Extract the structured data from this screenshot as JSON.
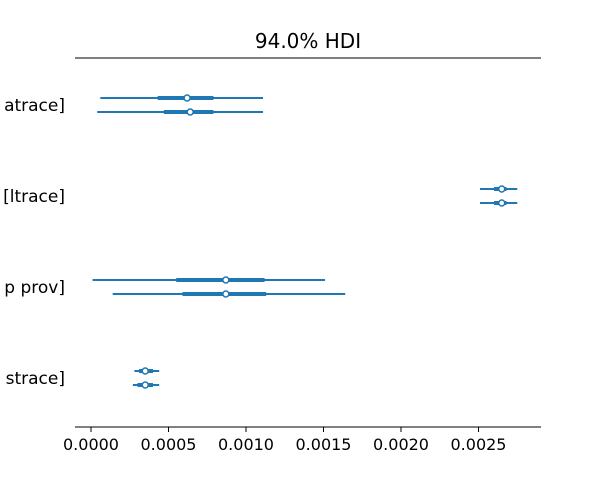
{
  "chart_data": {
    "type": "forest",
    "title": "94.0% HDI",
    "xlabel": "",
    "ylabel": "",
    "xlim": [
      -7e-05,
      0.00293
    ],
    "x_ticks": [
      0.0,
      0.0005,
      0.001,
      0.0015,
      0.002,
      0.0025
    ],
    "x_tick_labels": [
      "0.0000",
      "0.0005",
      "0.0010",
      "0.0015",
      "0.0020",
      "0.0025"
    ],
    "grid": false,
    "legend": "none",
    "line_color": "#1f77b4",
    "marker_face_color": "#ffffff",
    "categories": [
      {
        "label": "atrace]",
        "chains": [
          {
            "hdi": [
              6e-05,
              0.00111
            ],
            "iqr": [
              0.00043,
              0.00079
            ],
            "median": 0.00062
          },
          {
            "hdi": [
              4e-05,
              0.00111
            ],
            "iqr": [
              0.00047,
              0.00079
            ],
            "median": 0.00064
          }
        ]
      },
      {
        "label": "[ltrace]",
        "chains": [
          {
            "hdi": [
              0.00251,
              0.00275
            ],
            "iqr": [
              0.0026,
              0.00268
            ],
            "median": 0.00265
          },
          {
            "hdi": [
              0.00251,
              0.00275
            ],
            "iqr": [
              0.0026,
              0.00268
            ],
            "median": 0.00265
          }
        ]
      },
      {
        "label": "p prov]",
        "chains": [
          {
            "hdi": [
              1e-05,
              0.00151
            ],
            "iqr": [
              0.00055,
              0.00112
            ],
            "median": 0.00087
          },
          {
            "hdi": [
              0.00014,
              0.00164
            ],
            "iqr": [
              0.00059,
              0.00113
            ],
            "median": 0.00087
          }
        ]
      },
      {
        "label": "strace]",
        "chains": [
          {
            "hdi": [
              0.00028,
              0.00044
            ],
            "iqr": [
              0.00031,
              0.0004
            ],
            "median": 0.00035
          },
          {
            "hdi": [
              0.00027,
              0.00044
            ],
            "iqr": [
              0.0003,
              0.0004
            ],
            "median": 0.00035
          }
        ]
      }
    ]
  }
}
